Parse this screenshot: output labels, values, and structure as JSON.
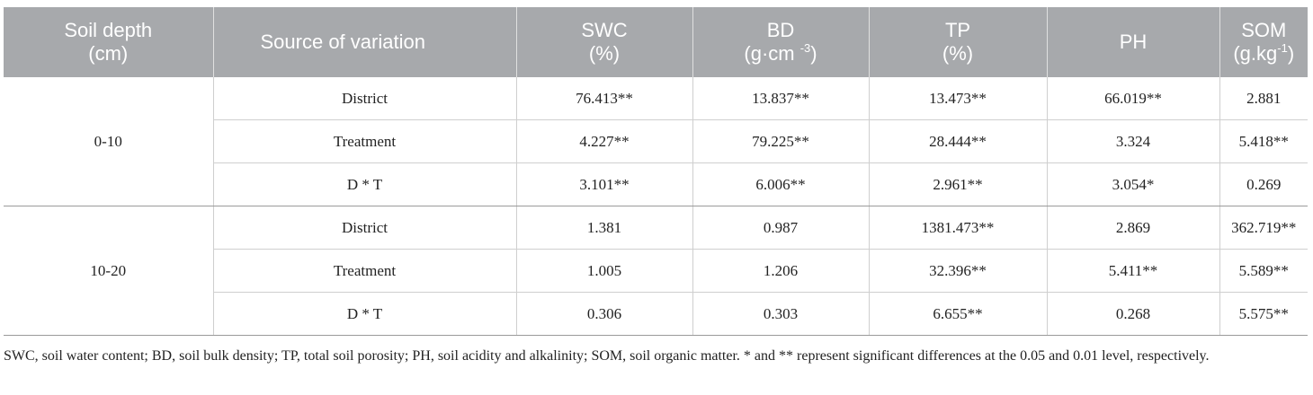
{
  "table": {
    "headers": {
      "depth": {
        "line1": "Soil depth",
        "line2": "(cm)"
      },
      "source": {
        "line1": "Source of variation"
      },
      "swc": {
        "line1": "SWC",
        "line2": "(%)"
      },
      "bd": {
        "line1": "BD",
        "line2_pre": "(g·cm ",
        "line2_sup": "-3",
        "line2_post": ")"
      },
      "tp": {
        "line1": "TP",
        "line2": "(%)"
      },
      "ph": {
        "line1": "PH"
      },
      "som": {
        "line1": "SOM",
        "line2_pre": "(g.kg",
        "line2_sup": "-1",
        "line2_post": ")"
      }
    },
    "groups": [
      {
        "depth": "0-10",
        "rows": [
          {
            "source": "District",
            "swc": "76.413**",
            "bd": "13.837**",
            "tp": "13.473**",
            "ph": "66.019**",
            "som": "2.881"
          },
          {
            "source": "Treatment",
            "swc": "4.227**",
            "bd": "79.225**",
            "tp": "28.444**",
            "ph": "3.324",
            "som": "5.418**"
          },
          {
            "source": "D * T",
            "swc": "3.101**",
            "bd": "6.006**",
            "tp": "2.961**",
            "ph": "3.054*",
            "som": "0.269"
          }
        ]
      },
      {
        "depth": "10-20",
        "rows": [
          {
            "source": "District",
            "swc": "1.381",
            "bd": "0.987",
            "tp": "1381.473**",
            "ph": "2.869",
            "som": "362.719**"
          },
          {
            "source": "Treatment",
            "swc": "1.005",
            "bd": "1.206",
            "tp": "32.396**",
            "ph": "5.411**",
            "som": "5.589**"
          },
          {
            "source": "D * T",
            "swc": "0.306",
            "bd": "0.303",
            "tp": "6.655**",
            "ph": "0.268",
            "som": "5.575**"
          }
        ]
      }
    ]
  },
  "footnote": "SWC, soil water content; BD, soil bulk density; TP, total soil porosity; PH, soil acidity and alkalinity; SOM, soil organic matter. * and ** represent significant differences at the 0.05 and 0.01 level, respectively.",
  "colors": {
    "header_bg": "#a7a9ac",
    "header_text": "#ffffff",
    "grid": "#cfcfcf",
    "text": "#222222"
  }
}
